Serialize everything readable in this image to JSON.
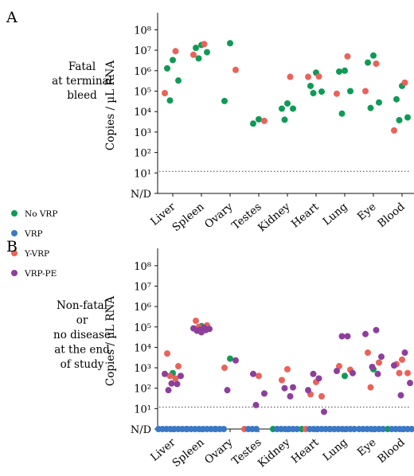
{
  "colors": {
    "No VRP": "#0f9a56",
    "VRP": "#3a78c4",
    "Y-VRP": "#e8635a",
    "VRP-PE": "#8c3f9b"
  },
  "legend": [
    "No VRP",
    "VRP",
    "Y-VRP",
    "VRP-PE"
  ],
  "chart_data": [
    {
      "type": "scatter",
      "panel": "A",
      "side_label": [
        "Fatal",
        "at terminal",
        "bleed"
      ],
      "ylabel": "Copies / µL RNA",
      "yscale": "log",
      "ylim": [
        1,
        100000000
      ],
      "yticks": [
        "N/D",
        "10^1",
        "10^2",
        "10^3",
        "10^4",
        "10^5",
        "10^6",
        "10^7",
        "10^8"
      ],
      "detection_limit": 12,
      "categories": [
        "Liver",
        "Spleen",
        "Ovary",
        "Testes",
        "Kidney",
        "Heart",
        "Lung",
        "Eye",
        "Blood"
      ],
      "series": [
        {
          "name": "No VRP",
          "points": [
            [
              "Liver",
              3300000
            ],
            [
              "Liver",
              1300000
            ],
            [
              "Liver",
              330000
            ],
            [
              "Liver",
              35000
            ],
            [
              "Spleen",
              18000000
            ],
            [
              "Spleen",
              13000000
            ],
            [
              "Spleen",
              8000000
            ],
            [
              "Spleen",
              4000000
            ],
            [
              "Ovary",
              22000000
            ],
            [
              "Ovary",
              33000
            ],
            [
              "Testes",
              4200
            ],
            [
              "Testes",
              2600
            ],
            [
              "Kidney",
              25000
            ],
            [
              "Kidney",
              14000
            ],
            [
              "Kidney",
              14000
            ],
            [
              "Kidney",
              4000
            ],
            [
              "Heart",
              800000
            ],
            [
              "Heart",
              180000
            ],
            [
              "Heart",
              95000
            ],
            [
              "Heart",
              80000
            ],
            [
              "Lung",
              1000000
            ],
            [
              "Lung",
              900000
            ],
            [
              "Lung",
              100000
            ],
            [
              "Lung",
              8000
            ],
            [
              "Eye",
              5500000
            ],
            [
              "Eye",
              2500000
            ],
            [
              "Eye",
              28000
            ],
            [
              "Eye",
              15000
            ],
            [
              "Blood",
              180000
            ],
            [
              "Blood",
              40000
            ],
            [
              "Blood",
              5200
            ],
            [
              "Blood",
              3800
            ]
          ]
        },
        {
          "name": "Y-VRP",
          "points": [
            [
              "Liver",
              9000000
            ],
            [
              "Liver",
              80000
            ],
            [
              "Spleen",
              20000000
            ],
            [
              "Spleen",
              6000000
            ],
            [
              "Ovary",
              1100000
            ],
            [
              "Testes",
              3500
            ],
            [
              "Kidney",
              500000
            ],
            [
              "Heart",
              520000
            ],
            [
              "Heart",
              500000
            ],
            [
              "Lung",
              5000000
            ],
            [
              "Lung",
              75000
            ],
            [
              "Eye",
              2200000
            ],
            [
              "Eye",
              100000
            ],
            [
              "Blood",
              260000
            ],
            [
              "Blood",
              1200
            ]
          ]
        }
      ]
    },
    {
      "type": "scatter",
      "panel": "B",
      "side_label": [
        "Non-fatal",
        "or",
        "no disease",
        "at the end",
        "of study"
      ],
      "ylabel": "Copies / µL RNA",
      "yscale": "log",
      "ylim": [
        1,
        100000000
      ],
      "yticks": [
        "N/D",
        "10^1",
        "10^2",
        "10^3",
        "10^4",
        "10^5",
        "10^6",
        "10^7",
        "10^8"
      ],
      "detection_limit": 12,
      "categories": [
        "Liver",
        "Spleen",
        "Ovary",
        "Testes",
        "Kidney",
        "Heart",
        "Lung",
        "Eye",
        "Blood"
      ],
      "series": [
        {
          "name": "No VRP",
          "points": [
            [
              "Liver",
              550
            ],
            [
              "Spleen",
              110000
            ],
            [
              "Ovary",
              2800
            ],
            [
              "Kidney",
              "N/D"
            ],
            [
              "Heart",
              "N/D"
            ],
            [
              "Lung",
              400
            ],
            [
              "Eye",
              850
            ],
            [
              "Blood",
              "N/D"
            ]
          ]
        },
        {
          "name": "Y-VRP",
          "points": [
            [
              "Liver",
              5000
            ],
            [
              "Liver",
              1200
            ],
            [
              "Liver",
              400
            ],
            [
              "Liver",
              300
            ],
            [
              "Spleen",
              200000
            ],
            [
              "Spleen",
              120000
            ],
            [
              "Spleen",
              100000
            ],
            [
              "Ovary",
              1000
            ],
            [
              "Testes",
              400
            ],
            [
              "Testes",
              "N/D"
            ],
            [
              "Kidney",
              850
            ],
            [
              "Kidney",
              250
            ],
            [
              "Heart",
              200
            ],
            [
              "Heart",
              50
            ],
            [
              "Heart",
              40
            ],
            [
              "Heart",
              "N/D"
            ],
            [
              "Lung",
              1200
            ],
            [
              "Lung",
              800
            ],
            [
              "Lung",
              "N/D"
            ],
            [
              "Eye",
              5500
            ],
            [
              "Eye",
              1800
            ],
            [
              "Eye",
              110
            ],
            [
              "Blood",
              2500
            ],
            [
              "Blood",
              1500
            ],
            [
              "Blood",
              550
            ],
            [
              "Blood",
              550
            ]
          ]
        },
        {
          "name": "VRP-PE",
          "points": [
            [
              "Liver",
              500
            ],
            [
              "Liver",
              400
            ],
            [
              "Liver",
              170
            ],
            [
              "Liver",
              160
            ],
            [
              "Liver",
              80
            ],
            [
              "Spleen",
              90000
            ],
            [
              "Spleen",
              85000
            ],
            [
              "Spleen",
              80000
            ],
            [
              "Spleen",
              75000
            ],
            [
              "Spleen",
              70000
            ],
            [
              "Spleen",
              65000
            ],
            [
              "Spleen",
              55000
            ],
            [
              "Ovary",
              2300
            ],
            [
              "Ovary",
              80
            ],
            [
              "Testes",
              500
            ],
            [
              "Testes",
              55
            ],
            [
              "Testes",
              15
            ],
            [
              "Kidney",
              110
            ],
            [
              "Kidney",
              100
            ],
            [
              "Kidney",
              40
            ],
            [
              "Heart",
              500
            ],
            [
              "Heart",
              300
            ],
            [
              "Heart",
              80
            ],
            [
              "Heart",
              7
            ],
            [
              "Lung",
              35000
            ],
            [
              "Lung",
              35000
            ],
            [
              "Lung",
              700
            ],
            [
              "Lung",
              550
            ],
            [
              "Eye",
              70000
            ],
            [
              "Eye",
              45000
            ],
            [
              "Eye",
              3500
            ],
            [
              "Eye",
              1100
            ],
            [
              "Eye",
              500
            ],
            [
              "Blood",
              5500
            ],
            [
              "Blood",
              1300
            ],
            [
              "Blood",
              180
            ],
            [
              "Blood",
              45
            ]
          ]
        },
        {
          "name": "VRP",
          "points": [
            [
              "Liver",
              "N/D"
            ],
            [
              "Liver",
              "N/D"
            ],
            [
              "Liver",
              "N/D"
            ],
            [
              "Liver",
              "N/D"
            ],
            [
              "Liver",
              "N/D"
            ],
            [
              "Liver",
              "N/D"
            ],
            [
              "Liver",
              "N/D"
            ],
            [
              "Liver",
              "N/D"
            ],
            [
              "Spleen",
              "N/D"
            ],
            [
              "Spleen",
              "N/D"
            ],
            [
              "Spleen",
              "N/D"
            ],
            [
              "Spleen",
              "N/D"
            ],
            [
              "Spleen",
              "N/D"
            ],
            [
              "Spleen",
              "N/D"
            ],
            [
              "Spleen",
              "N/D"
            ],
            [
              "Spleen",
              "N/D"
            ],
            [
              "Ovary",
              "N/D"
            ],
            [
              "Ovary",
              "N/D"
            ],
            [
              "Ovary",
              "N/D"
            ],
            [
              "Testes",
              "N/D"
            ],
            [
              "Testes",
              "N/D"
            ],
            [
              "Testes",
              "N/D"
            ],
            [
              "Kidney",
              "N/D"
            ],
            [
              "Kidney",
              "N/D"
            ],
            [
              "Kidney",
              "N/D"
            ],
            [
              "Kidney",
              "N/D"
            ],
            [
              "Kidney",
              "N/D"
            ],
            [
              "Kidney",
              "N/D"
            ],
            [
              "Heart",
              "N/D"
            ],
            [
              "Heart",
              "N/D"
            ],
            [
              "Heart",
              "N/D"
            ],
            [
              "Heart",
              "N/D"
            ],
            [
              "Heart",
              "N/D"
            ],
            [
              "Heart",
              "N/D"
            ],
            [
              "Lung",
              "N/D"
            ],
            [
              "Lung",
              "N/D"
            ],
            [
              "Lung",
              "N/D"
            ],
            [
              "Lung",
              "N/D"
            ],
            [
              "Lung",
              "N/D"
            ],
            [
              "Lung",
              "N/D"
            ],
            [
              "Eye",
              "N/D"
            ],
            [
              "Eye",
              "N/D"
            ],
            [
              "Eye",
              "N/D"
            ],
            [
              "Eye",
              "N/D"
            ],
            [
              "Eye",
              "N/D"
            ],
            [
              "Eye",
              "N/D"
            ],
            [
              "Eye",
              "N/D"
            ],
            [
              "Blood",
              "N/D"
            ],
            [
              "Blood",
              "N/D"
            ],
            [
              "Blood",
              "N/D"
            ],
            [
              "Blood",
              "N/D"
            ],
            [
              "Blood",
              "N/D"
            ],
            [
              "Blood",
              "N/D"
            ],
            [
              "Blood",
              "N/D"
            ]
          ]
        }
      ]
    }
  ]
}
